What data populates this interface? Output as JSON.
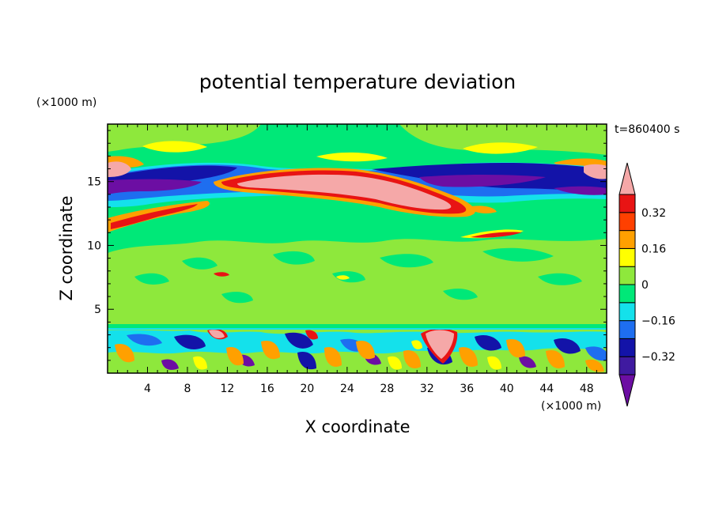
{
  "chart_data": {
    "type": "heatmap",
    "title": "potential temperature deviation",
    "xlabel": "X coordinate",
    "ylabel": "Z coordinate",
    "x_unit": "(×1000 m)",
    "y_unit": "(×1000 m)",
    "time_label": "t=860400 s",
    "xlim": [
      0,
      50
    ],
    "ylim": [
      0,
      19.5
    ],
    "x_ticks": [
      4,
      8,
      12,
      16,
      20,
      24,
      28,
      32,
      36,
      40,
      44,
      48
    ],
    "y_ticks": [
      5,
      10,
      15
    ],
    "colorbar": {
      "levels": [
        -0.4,
        -0.32,
        -0.24,
        -0.16,
        -0.08,
        0,
        0.08,
        0.16,
        0.24,
        0.32,
        0.4
      ],
      "labeled_ticks": [
        0.32,
        0.16,
        0,
        -0.16,
        -0.32
      ],
      "colors": [
        "#6c0ea3",
        "#3f1aa0",
        "#1313a8",
        "#1e6ef0",
        "#14e1eb",
        "#00e878",
        "#8ee83c",
        "#ffff00",
        "#ffa000",
        "#ff4000",
        "#e81414",
        "#f5a8a8"
      ]
    }
  }
}
